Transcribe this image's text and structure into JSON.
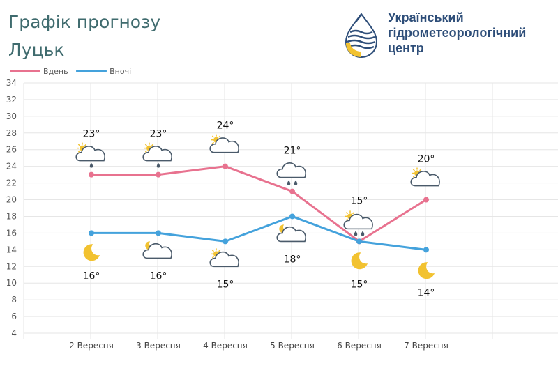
{
  "header": {
    "title": "Графік прогнозу",
    "city": "Луцьк"
  },
  "logo": {
    "line1": "Український",
    "line2": "гідрометеорологічний",
    "line3": "центр",
    "icon": "water-drop-logo-icon"
  },
  "colors": {
    "day": "#e8728f",
    "night": "#44a2dc",
    "title": "#3f6b6e",
    "logo_text": "#2e4e79"
  },
  "chart_data": {
    "type": "line",
    "categories": [
      "2 Вересня",
      "3 Вересня",
      "4 Вересня",
      "5 Вересня",
      "6 Вересня",
      "7 Вересня"
    ],
    "series": [
      {
        "name": "Вдень",
        "values": [
          23,
          23,
          24,
          21,
          15,
          20
        ],
        "labels": [
          "23°",
          "23°",
          "24°",
          "21°",
          "15°",
          "20°"
        ],
        "icons": [
          "partly-cloudy-drizzle-icon",
          "partly-cloudy-drizzle-icon",
          "partly-cloudy-icon",
          "cloud-rain-icon",
          "partly-cloudy-rain-icon",
          "partly-cloudy-icon"
        ]
      },
      {
        "name": "Вночі",
        "values": [
          16,
          16,
          15,
          18,
          15,
          14
        ],
        "labels": [
          "16°",
          "16°",
          "15°",
          "18°",
          "15°",
          "14°"
        ],
        "icons": [
          "moon-icon",
          "partly-cloudy-night-icon",
          "partly-cloudy-icon",
          "partly-cloudy-night-icon",
          "moon-icon",
          "moon-icon"
        ]
      }
    ],
    "ylim": [
      4,
      34
    ],
    "yticks": [
      4,
      6,
      8,
      10,
      12,
      14,
      16,
      18,
      20,
      22,
      24,
      26,
      28,
      30,
      32,
      34
    ],
    "grid": true,
    "legend_position": "top-left"
  }
}
